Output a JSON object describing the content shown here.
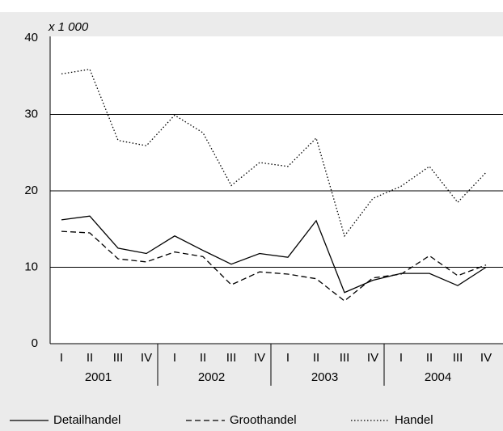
{
  "chart_data": {
    "type": "line",
    "unit_label": "x 1 000",
    "categories": [
      "I",
      "II",
      "III",
      "IV",
      "I",
      "II",
      "III",
      "IV",
      "I",
      "II",
      "III",
      "IV",
      "I",
      "II",
      "III",
      "IV"
    ],
    "groups": [
      {
        "label": "2001",
        "size": 4
      },
      {
        "label": "2002",
        "size": 4
      },
      {
        "label": "2003",
        "size": 4
      },
      {
        "label": "2004",
        "size": 4
      }
    ],
    "series": [
      {
        "name": "Detailhandel",
        "color": "#000000",
        "dash": "solid",
        "values": [
          16.2,
          16.7,
          12.5,
          11.8,
          14.1,
          12.2,
          10.4,
          11.8,
          11.3,
          16.1,
          6.7,
          8.3,
          9.2,
          9.2,
          7.6,
          10.0
        ]
      },
      {
        "name": "Groothandel",
        "color": "#000000",
        "dash": "dashed",
        "values": [
          14.7,
          14.5,
          11.1,
          10.7,
          12.0,
          11.4,
          7.7,
          9.4,
          9.1,
          8.5,
          5.6,
          8.6,
          9.1,
          11.5,
          8.9,
          10.3
        ]
      },
      {
        "name": "Handel",
        "color": "#000000",
        "dash": "dotted",
        "values": [
          35.3,
          35.9,
          26.6,
          25.9,
          29.9,
          27.6,
          20.7,
          23.7,
          23.2,
          26.9,
          14.1,
          19.0,
          20.6,
          23.2,
          18.5,
          22.4
        ]
      }
    ],
    "ylim": [
      0,
      40
    ],
    "yticks": [
      0,
      10,
      20,
      30,
      40
    ],
    "grid": true,
    "legend": "bottom"
  }
}
